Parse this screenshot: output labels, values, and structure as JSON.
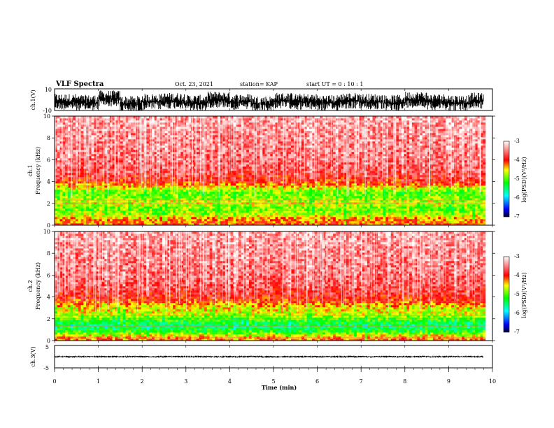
{
  "header": {
    "title": "VLF Spectra",
    "date": "Oct. 23, 2021",
    "station": "station= KAP",
    "start_ut": "start  UT =   0  : 10 : 1"
  },
  "chart_data": [
    {
      "type": "line",
      "panel": "waveform-ch1",
      "ylabel": "ch.1(V)",
      "y_tick_labels": [
        "10",
        "-10"
      ],
      "ylim": [
        -10,
        10
      ],
      "x": [
        0,
        0.5,
        1,
        1.5,
        2,
        2.5,
        3,
        3.5,
        4,
        4.5,
        5,
        5.5,
        6,
        6.5,
        7,
        7.5,
        8,
        8.5,
        9,
        9.5,
        9.8
      ],
      "values": [
        -2,
        -3,
        1,
        -4,
        -2,
        -1,
        -3,
        0,
        -2,
        -4,
        -1,
        -2,
        -3,
        -1,
        -2,
        -3,
        0,
        -2,
        -3,
        -1,
        -2
      ],
      "line_color": "#000000"
    },
    {
      "type": "heatmap",
      "panel": "spectrogram-ch1",
      "ylabel": "ch.1\nFrequency (kHz)",
      "ylim": [
        0,
        10
      ],
      "y_ticks": [
        "0",
        "2",
        "4",
        "6",
        "8",
        "10"
      ],
      "z_profile": {
        "freq_khz": [
          0,
          0.5,
          1.0,
          1.5,
          2.0,
          2.5,
          3.0,
          3.5,
          4.0,
          5.0,
          6.0,
          8.0,
          10.0
        ],
        "log_psd": [
          -4.1,
          -4.2,
          -4.7,
          -4.9,
          -4.6,
          -4.8,
          -4.9,
          -4.5,
          -4.0,
          -3.7,
          -3.6,
          -3.5,
          -3.4
        ]
      },
      "colorbar": {
        "max_label": "-3",
        "min_label": "-7",
        "ticks": [
          "-4",
          "-5",
          "-6"
        ],
        "label": "log(PSD)(V²/Hz)"
      }
    },
    {
      "type": "heatmap",
      "panel": "spectrogram-ch2",
      "ylabel": "ch.2\nFrequency (kHz)",
      "ylim": [
        0,
        10
      ],
      "y_ticks": [
        "0",
        "2",
        "4",
        "6",
        "8",
        "10"
      ],
      "z_profile": {
        "freq_khz": [
          0,
          0.5,
          1.0,
          1.5,
          2.0,
          2.5,
          3.0,
          3.5,
          4.0,
          5.0,
          6.0,
          8.0,
          10.0
        ],
        "log_psd": [
          -4.0,
          -4.6,
          -5.3,
          -5.4,
          -5.0,
          -4.6,
          -4.5,
          -4.2,
          -3.9,
          -3.7,
          -3.6,
          -3.5,
          -3.4
        ]
      },
      "colorbar": {
        "max_label": "-3",
        "min_label": "-7",
        "ticks": [
          "-4",
          "-5",
          "-6"
        ],
        "label": "log(PSD)(V²/Hz)"
      }
    },
    {
      "type": "line",
      "panel": "waveform-ch3",
      "ylabel": "ch.3(V)",
      "y_tick_labels": [
        "5",
        "-5"
      ],
      "ylim": [
        -5,
        5
      ],
      "x": [
        0,
        1,
        2,
        3,
        4,
        5,
        6,
        7,
        8,
        9,
        9.8
      ],
      "values": [
        0,
        0,
        0,
        0,
        0,
        0,
        0,
        0,
        0,
        0,
        0
      ],
      "line_color": "#000000"
    }
  ],
  "xaxis": {
    "xlabel": "Time (min)",
    "xlim": [
      0,
      10
    ],
    "ticks": [
      "0",
      "1",
      "2",
      "3",
      "4",
      "5",
      "6",
      "7",
      "8",
      "9",
      "10"
    ]
  }
}
